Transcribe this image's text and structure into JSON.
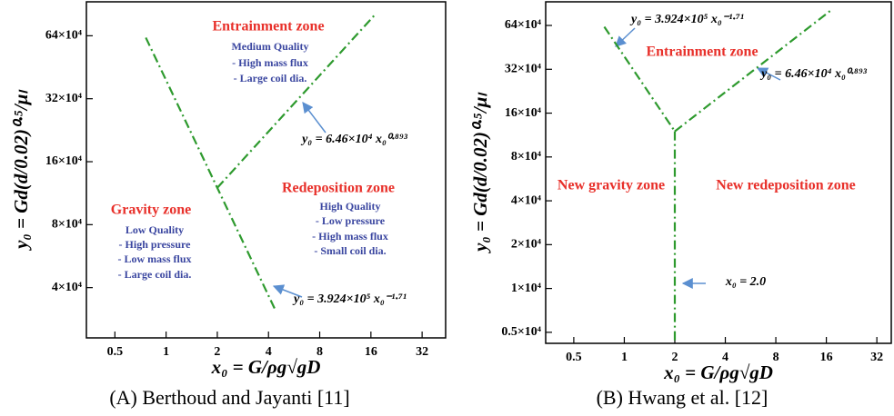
{
  "chart_data": [
    {
      "type": "line",
      "x_label": "x₀ = G/ρg√gD",
      "y_label": "y₀ = Gd(d/0.02)⁰·⁵/μₗ",
      "caption": "(A) Berthoud and Jayanti [11]",
      "xscale": "log",
      "yscale": "log",
      "xlim": [
        0.34,
        44
      ],
      "ylim": [
        23000,
        930000
      ],
      "xticks": [
        0.5,
        1,
        2,
        4,
        8,
        16,
        32
      ],
      "yticks": [
        {
          "value": 40000,
          "label": "4×10⁴"
        },
        {
          "value": 80000,
          "label": "8×10⁴"
        },
        {
          "value": 160000,
          "label": "16×10⁴"
        },
        {
          "value": 320000,
          "label": "32×10⁴"
        },
        {
          "value": 640000,
          "label": "64×10⁴"
        }
      ],
      "series": [
        {
          "color": "#2e9a2e",
          "x": [
            0.76,
            2,
            4.4
          ],
          "values": [
            627000,
            120000,
            31100
          ]
        },
        {
          "color": "#2e9a2e",
          "x": [
            2,
            17
          ],
          "values": [
            120000,
            811000
          ]
        }
      ],
      "annotations": [
        "Entrainment zone",
        "Medium Quality",
        "- High mass flux",
        "- Large coil dia.",
        "y₀ = 6.46×10⁴ x₀⁰·⁸⁹³",
        "Gravity zone",
        "Low Quality",
        "- High pressure",
        "- Low mass flux",
        "- Large coil dia.",
        "Redeposition zone",
        "High Quality",
        "- Low pressure",
        "- High mass flux",
        "- Small coil dia.",
        "y₀ = 3.924×10⁵ x₀⁻¹·⁷¹"
      ]
    },
    {
      "type": "line",
      "x_label": "x₀ = G/ρg√gD",
      "y_label": "y₀ = Gd(d/0.02)⁰·⁵/μₗ",
      "caption": "(B) Hwang et al. [12]",
      "xscale": "log",
      "yscale": "log",
      "xlim": [
        0.34,
        39
      ],
      "ylim": [
        4200,
        930000
      ],
      "xticks": [
        0.5,
        1,
        2,
        4,
        8,
        16,
        32
      ],
      "yticks": [
        {
          "value": 5000,
          "label": "0.5×10⁴"
        },
        {
          "value": 10000,
          "label": "1×10⁴"
        },
        {
          "value": 20000,
          "label": "2×10⁴"
        },
        {
          "value": 40000,
          "label": "4×10⁴"
        },
        {
          "value": 80000,
          "label": "8×10⁴"
        },
        {
          "value": 160000,
          "label": "16×10⁴"
        },
        {
          "value": 320000,
          "label": "32×10⁴"
        },
        {
          "value": 640000,
          "label": "64×10⁴"
        }
      ],
      "series": [
        {
          "color": "#2e9a2e",
          "x": [
            0.76,
            2
          ],
          "values": [
            627000,
            120000
          ]
        },
        {
          "color": "#2e9a2e",
          "x": [
            2,
            17
          ],
          "values": [
            120000,
            811000
          ]
        },
        {
          "color": "#2e9a2e",
          "x": [
            2,
            2
          ],
          "values": [
            120000,
            4200
          ]
        }
      ],
      "annotations": [
        "y₀ = 3.924×10⁵ x₀⁻¹·⁷¹",
        "Entrainment zone",
        "y₀ = 6.46×10⁴ x₀⁰·⁸⁹³",
        "New gravity zone",
        "New redeposition zone",
        "x₀ = 2.0"
      ]
    }
  ]
}
